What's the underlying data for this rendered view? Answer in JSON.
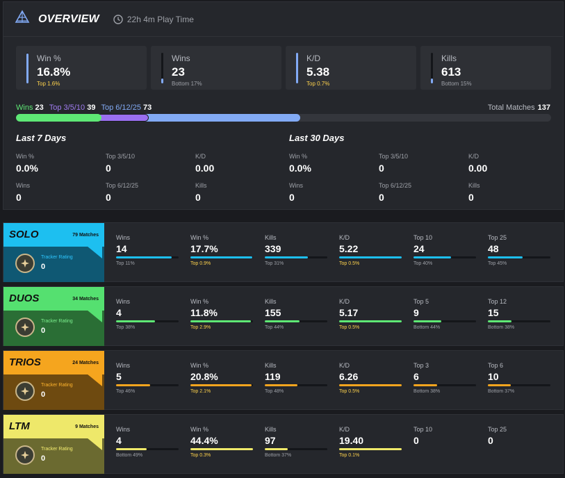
{
  "overview": {
    "title": "OVERVIEW",
    "playtime": "22h 4m Play Time",
    "cards": [
      {
        "label": "Win %",
        "value": "16.8%",
        "rank": "Top 1.6%",
        "gold": true,
        "fill": 0.98
      },
      {
        "label": "Wins",
        "value": "23",
        "rank": "Bottom 17%",
        "gold": false,
        "fill": 0.17
      },
      {
        "label": "K/D",
        "value": "5.38",
        "rank": "Top 0.7%",
        "gold": true,
        "fill": 0.99
      },
      {
        "label": "Kills",
        "value": "613",
        "rank": "Bottom 15%",
        "gold": false,
        "fill": 0.15
      }
    ],
    "legend": {
      "wins_label": "Wins",
      "wins_value": "23",
      "top3_label": "Top 3/5/10",
      "top3_value": "39",
      "top6_label": "Top 6/12/25",
      "top6_value": "73"
    },
    "total_label": "Total Matches",
    "total_value": "137",
    "bar": {
      "wins": 23,
      "top3": 39,
      "top6": 73,
      "total": 137
    },
    "periods": [
      {
        "title": "Last 7 Days",
        "stats": [
          {
            "label": "Win %",
            "value": "0.0%"
          },
          {
            "label": "Top 3/5/10",
            "value": "0"
          },
          {
            "label": "K/D",
            "value": "0.00"
          },
          {
            "label": "Wins",
            "value": "0"
          },
          {
            "label": "Top 6/12/25",
            "value": "0"
          },
          {
            "label": "Kills",
            "value": "0"
          }
        ]
      },
      {
        "title": "Last 30 Days",
        "stats": [
          {
            "label": "Win %",
            "value": "0.0%"
          },
          {
            "label": "Top 3/5/10",
            "value": "0"
          },
          {
            "label": "K/D",
            "value": "0.00"
          },
          {
            "label": "Wins",
            "value": "0"
          },
          {
            "label": "Top 6/12/25",
            "value": "0"
          },
          {
            "label": "Kills",
            "value": "0"
          }
        ]
      }
    ]
  },
  "modes": [
    {
      "name": "SOLO",
      "matches": "79 Matches",
      "tracker_label": "Tracker Rating",
      "tracker_value": "0",
      "color_top": "#1dbff0",
      "color_bottom": "#0f5873",
      "color_bar": "#1dbff0",
      "color_tr": "#2ec7ff",
      "stats": [
        {
          "label": "Wins",
          "value": "14",
          "rank": "Top 11%",
          "gold": false,
          "fill": 0.89
        },
        {
          "label": "Win %",
          "value": "17.7%",
          "rank": "Top 0.9%",
          "gold": true,
          "fill": 0.99
        },
        {
          "label": "Kills",
          "value": "339",
          "rank": "Top 31%",
          "gold": false,
          "fill": 0.69
        },
        {
          "label": "K/D",
          "value": "5.22",
          "rank": "Top 0.5%",
          "gold": true,
          "fill": 0.995
        },
        {
          "label": "Top 10",
          "value": "24",
          "rank": "Top 40%",
          "gold": false,
          "fill": 0.6
        },
        {
          "label": "Top 25",
          "value": "48",
          "rank": "Top 45%",
          "gold": false,
          "fill": 0.55
        }
      ]
    },
    {
      "name": "DUOS",
      "matches": "34 Matches",
      "tracker_label": "Tracker Rating",
      "tracker_value": "0",
      "color_top": "#55e070",
      "color_bottom": "#2a6e35",
      "color_bar": "#5ee875",
      "color_tr": "#7cf08e",
      "stats": [
        {
          "label": "Wins",
          "value": "4",
          "rank": "Top 38%",
          "gold": false,
          "fill": 0.62
        },
        {
          "label": "Win %",
          "value": "11.8%",
          "rank": "Top 2.9%",
          "gold": true,
          "fill": 0.97
        },
        {
          "label": "Kills",
          "value": "155",
          "rank": "Top 44%",
          "gold": false,
          "fill": 0.56
        },
        {
          "label": "K/D",
          "value": "5.17",
          "rank": "Top 0.5%",
          "gold": true,
          "fill": 0.995
        },
        {
          "label": "Top 5",
          "value": "9",
          "rank": "Bottom 44%",
          "gold": false,
          "fill": 0.44
        },
        {
          "label": "Top 12",
          "value": "15",
          "rank": "Bottom 38%",
          "gold": false,
          "fill": 0.38
        }
      ]
    },
    {
      "name": "TRIOS",
      "matches": "24 Matches",
      "tracker_label": "Tracker Rating",
      "tracker_value": "0",
      "color_top": "#f5a51e",
      "color_bottom": "#6e4a10",
      "color_bar": "#f5a51e",
      "color_tr": "#ffb52e",
      "stats": [
        {
          "label": "Wins",
          "value": "5",
          "rank": "Top 46%",
          "gold": false,
          "fill": 0.54
        },
        {
          "label": "Win %",
          "value": "20.8%",
          "rank": "Top 2.1%",
          "gold": true,
          "fill": 0.98
        },
        {
          "label": "Kills",
          "value": "119",
          "rank": "Top 48%",
          "gold": false,
          "fill": 0.52
        },
        {
          "label": "K/D",
          "value": "6.26",
          "rank": "Top 0.5%",
          "gold": true,
          "fill": 0.995
        },
        {
          "label": "Top 3",
          "value": "6",
          "rank": "Bottom 38%",
          "gold": false,
          "fill": 0.38
        },
        {
          "label": "Top 6",
          "value": "10",
          "rank": "Bottom 37%",
          "gold": false,
          "fill": 0.37
        }
      ]
    },
    {
      "name": "LTM",
      "matches": "9 Matches",
      "tracker_label": "Tracker Rating",
      "tracker_value": "0",
      "color_top": "#eee86a",
      "color_bottom": "#6b6a30",
      "color_bar": "#f0ea6a",
      "color_tr": "#f5ee70",
      "stats": [
        {
          "label": "Wins",
          "value": "4",
          "rank": "Bottom 49%",
          "gold": false,
          "fill": 0.49
        },
        {
          "label": "Win %",
          "value": "44.4%",
          "rank": "Top 0.3%",
          "gold": true,
          "fill": 0.997
        },
        {
          "label": "Kills",
          "value": "97",
          "rank": "Bottom 37%",
          "gold": false,
          "fill": 0.37
        },
        {
          "label": "K/D",
          "value": "19.40",
          "rank": "Top 0.1%",
          "gold": true,
          "fill": 0.999
        },
        {
          "label": "Top 10",
          "value": "0",
          "rank": "",
          "gold": false,
          "fill": null
        },
        {
          "label": "Top 25",
          "value": "0",
          "rank": "",
          "gold": false,
          "fill": null
        }
      ]
    }
  ]
}
